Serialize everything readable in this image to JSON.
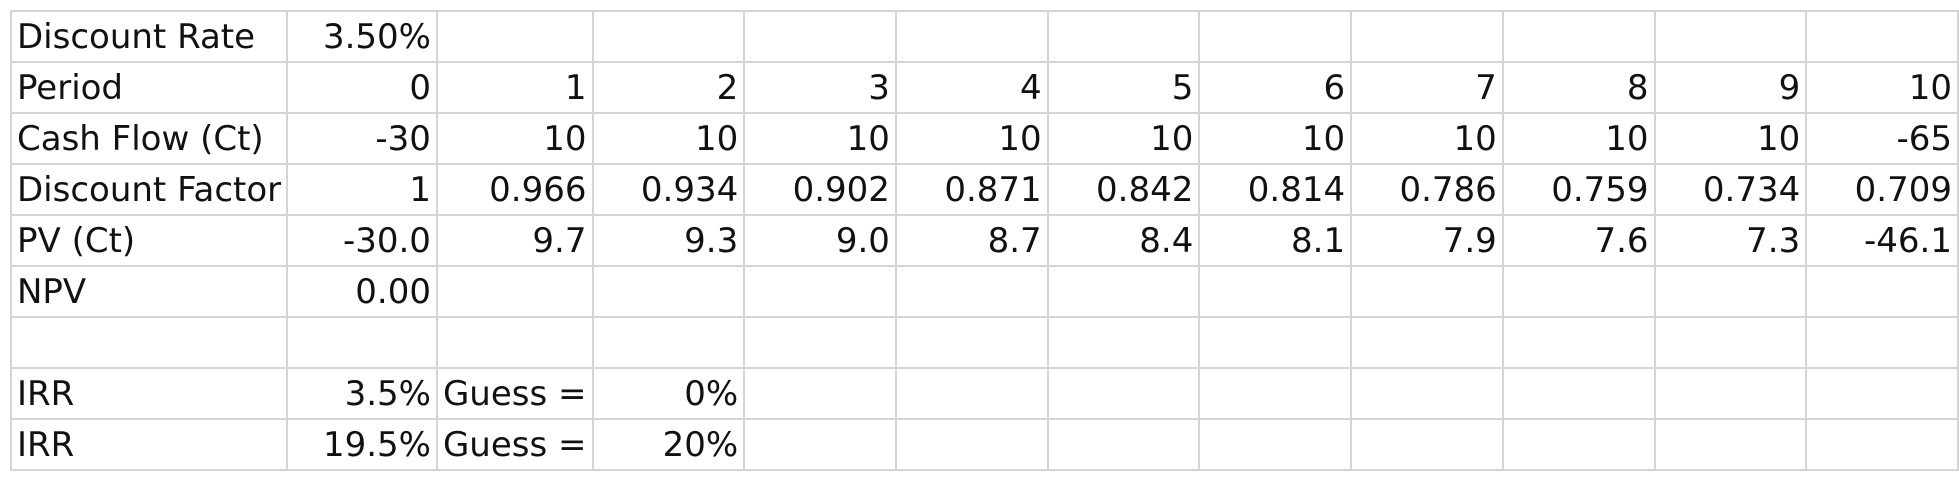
{
  "sheet": {
    "rows": [
      [
        "Discount Rate",
        "3.50%",
        "",
        "",
        "",
        "",
        "",
        "",
        "",
        "",
        "",
        ""
      ],
      [
        "Period",
        "0",
        "1",
        "2",
        "3",
        "4",
        "5",
        "6",
        "7",
        "8",
        "9",
        "10"
      ],
      [
        "Cash Flow (Ct)",
        "-30",
        "10",
        "10",
        "10",
        "10",
        "10",
        "10",
        "10",
        "10",
        "10",
        "-65"
      ],
      [
        "Discount Factor",
        "1",
        "0.966",
        "0.934",
        "0.902",
        "0.871",
        "0.842",
        "0.814",
        "0.786",
        "0.759",
        "0.734",
        "0.709"
      ],
      [
        "PV (Ct)",
        "-30.0",
        "9.7",
        "9.3",
        "9.0",
        "8.7",
        "8.4",
        "8.1",
        "7.9",
        "7.6",
        "7.3",
        "-46.1"
      ],
      [
        "NPV",
        "0.00",
        "",
        "",
        "",
        "",
        "",
        "",
        "",
        "",
        "",
        ""
      ],
      [
        "",
        "",
        "",
        "",
        "",
        "",
        "",
        "",
        "",
        "",
        "",
        ""
      ],
      [
        "IRR",
        "3.5%",
        "Guess =",
        "0%",
        "",
        "",
        "",
        "",
        "",
        "",
        "",
        ""
      ],
      [
        "IRR",
        "19.5%",
        "Guess =",
        "20%",
        "",
        "",
        "",
        "",
        "",
        "",
        "",
        ""
      ]
    ]
  }
}
